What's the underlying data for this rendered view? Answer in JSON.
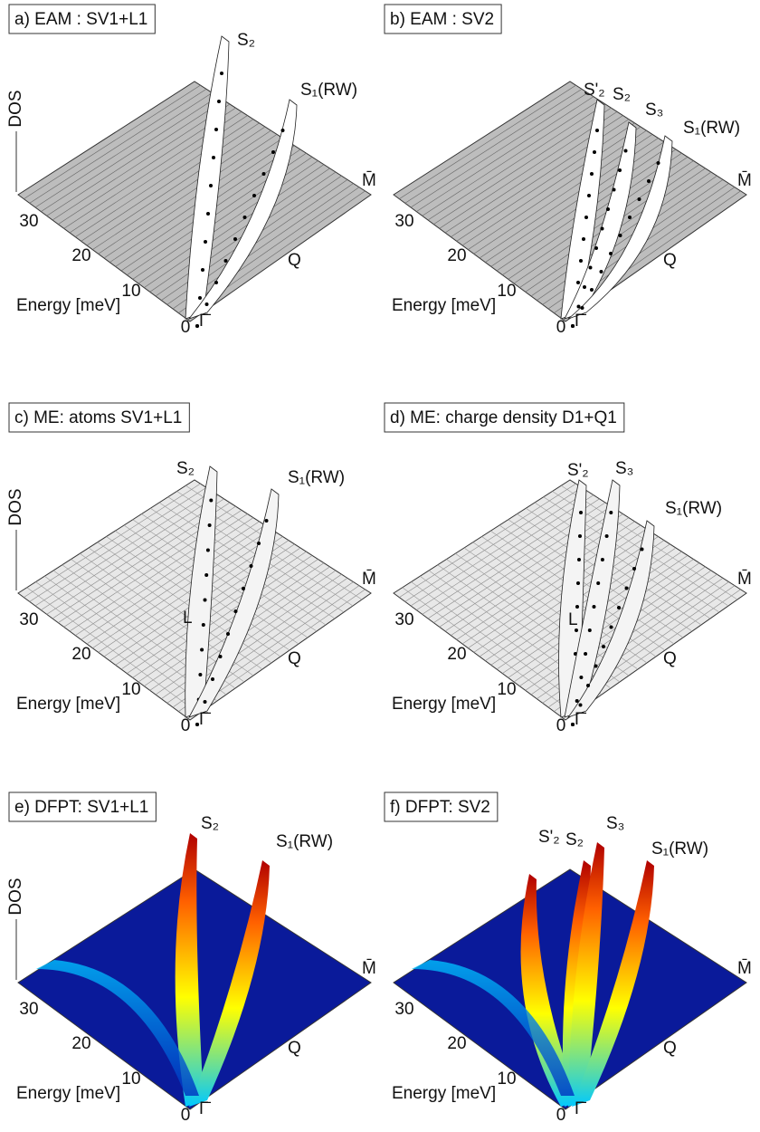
{
  "panels": [
    {
      "title": "a) EAM : SV1+L1",
      "dos": "DOS",
      "ticks": [
        "30",
        "20",
        "10",
        "0"
      ],
      "energy": "Energy [meV]",
      "gamma": "Γ̄",
      "mbar": "M̄",
      "q": "Q",
      "peaks": [
        "S₂",
        "S₁(RW)"
      ]
    },
    {
      "title": "b) EAM : SV2",
      "ticks": [
        "30",
        "20",
        "10",
        "0"
      ],
      "energy": "Energy [meV]",
      "gamma": "Γ̄",
      "mbar": "M̄",
      "q": "Q",
      "peaks": [
        "S'₂",
        "S₂",
        "S₃",
        "S₁(RW)"
      ]
    },
    {
      "title": "c) ME: atoms SV1+L1",
      "dos": "DOS",
      "ticks": [
        "30",
        "20",
        "10",
        "0"
      ],
      "energy": "Energy [meV]",
      "gamma": "Γ̄",
      "mbar": "M̄",
      "q": "Q",
      "peaks": [
        "S₂",
        "S₁(RW)",
        "L"
      ]
    },
    {
      "title": "d) ME: charge density D1+Q1",
      "ticks": [
        "30",
        "20",
        "10",
        "0"
      ],
      "energy": "Energy [meV]",
      "gamma": "Γ̄",
      "mbar": "M̄",
      "q": "Q",
      "peaks": [
        "S'₂",
        "S₃",
        "S₁(RW)",
        "L"
      ]
    },
    {
      "title": "e) DFPT: SV1+L1",
      "dos": "DOS",
      "ticks": [
        "30",
        "20",
        "10",
        "0"
      ],
      "energy": "Energy [meV]",
      "gamma": "Γ̄",
      "mbar": "M̄",
      "q": "Q",
      "peaks": [
        "S₂",
        "S₁(RW)"
      ]
    },
    {
      "title": "f) DFPT: SV2",
      "ticks": [
        "30",
        "20",
        "10",
        "0"
      ],
      "energy": "Energy [meV]",
      "gamma": "Γ̄",
      "mbar": "M̄",
      "q": "Q",
      "peaks": [
        "S'₂",
        "S₂",
        "S₃",
        "S₁(RW)"
      ]
    }
  ]
}
